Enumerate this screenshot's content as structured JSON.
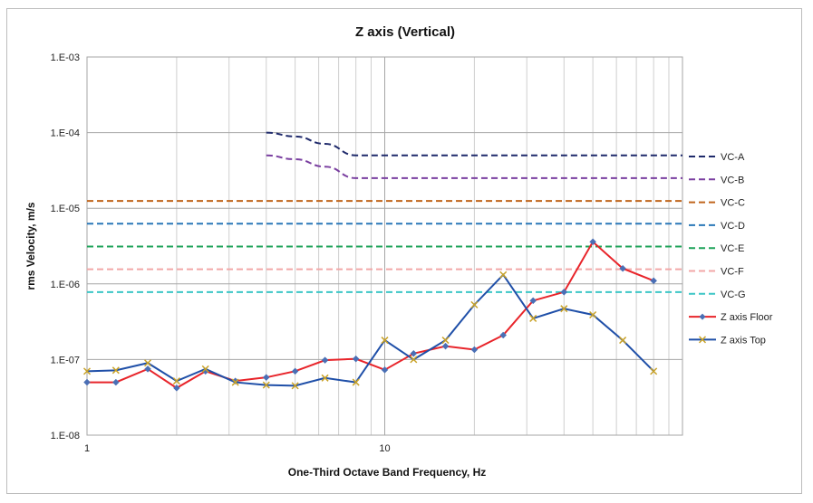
{
  "chart_data": {
    "type": "line",
    "title": "Z axis (Vertical)",
    "xlabel": "One-Third Octave Band Frequency, Hz",
    "ylabel": "rms Velocity, m/s",
    "x_scale": "log",
    "y_scale": "log",
    "xlim": [
      1,
      100
    ],
    "ylim": [
      1e-08,
      0.001
    ],
    "x_tick_labels": [
      {
        "value": 1,
        "label": "1"
      },
      {
        "value": 10,
        "label": "10"
      }
    ],
    "y_tick_labels": [
      {
        "value": 1e-08,
        "label": "1.E-08"
      },
      {
        "value": 1e-07,
        "label": "1.E-07"
      },
      {
        "value": 1e-06,
        "label": "1.E-06"
      },
      {
        "value": 1e-05,
        "label": "1.E-05"
      },
      {
        "value": 0.0001,
        "label": "1.E-04"
      },
      {
        "value": 0.001,
        "label": "1.E-03"
      }
    ],
    "grid": true,
    "legend_position": "right",
    "series": [
      {
        "name": "VC-A",
        "style": "dashed",
        "color": "#1f2a6b",
        "x": [
          4,
          5,
          6.3,
          8,
          10,
          100
        ],
        "y": [
          0.0001,
          8.9e-05,
          7.1e-05,
          5e-05,
          5e-05,
          5e-05
        ]
      },
      {
        "name": "VC-B",
        "style": "dashed",
        "color": "#7a3fa0",
        "x": [
          4,
          5,
          6.3,
          8,
          10,
          100
        ],
        "y": [
          5e-05,
          4.45e-05,
          3.55e-05,
          2.5e-05,
          2.5e-05,
          2.5e-05
        ]
      },
      {
        "name": "VC-C",
        "style": "dashed",
        "color": "#c0651c",
        "x": [
          1,
          100
        ],
        "y": [
          1.25e-05,
          1.25e-05
        ]
      },
      {
        "name": "VC-D",
        "style": "dashed",
        "color": "#2a78b8",
        "x": [
          1,
          100
        ],
        "y": [
          6.25e-06,
          6.25e-06
        ]
      },
      {
        "name": "VC-E",
        "style": "dashed",
        "color": "#1fa35a",
        "x": [
          1,
          100
        ],
        "y": [
          3.12e-06,
          3.12e-06
        ]
      },
      {
        "name": "VC-F",
        "style": "dashed",
        "color": "#f2a7a7",
        "x": [
          1,
          100
        ],
        "y": [
          1.56e-06,
          1.56e-06
        ]
      },
      {
        "name": "VC-G",
        "style": "dashed",
        "color": "#3cc6c6",
        "x": [
          1,
          100
        ],
        "y": [
          7.8e-07,
          7.8e-07
        ]
      },
      {
        "name": "Z axis Floor",
        "style": "solid",
        "color": "#e8242a",
        "marker": "diamond",
        "marker_color": "#4a6fb5",
        "x": [
          1,
          1.25,
          1.6,
          2,
          2.5,
          3.15,
          4,
          5,
          6.3,
          8,
          10,
          12.5,
          16,
          20,
          25,
          31.5,
          40,
          50,
          63,
          80
        ],
        "y": [
          5e-08,
          5e-08,
          7.5e-08,
          4.2e-08,
          7e-08,
          5.2e-08,
          5.8e-08,
          7e-08,
          9.8e-08,
          1.02e-07,
          7.3e-08,
          1.2e-07,
          1.5e-07,
          1.35e-07,
          2.1e-07,
          6e-07,
          7.8e-07,
          3.6e-06,
          1.6e-06,
          1.1e-06
        ]
      },
      {
        "name": "Z axis Top",
        "style": "solid",
        "color": "#1f4fa8",
        "marker": "x",
        "marker_color": "#c9a227",
        "x": [
          1,
          1.25,
          1.6,
          2,
          2.5,
          3.15,
          4,
          5,
          6.3,
          8,
          10,
          12.5,
          16,
          20,
          25,
          31.5,
          40,
          50,
          63,
          80
        ],
        "y": [
          7e-08,
          7.2e-08,
          9e-08,
          5.2e-08,
          7.5e-08,
          5e-08,
          4.6e-08,
          4.5e-08,
          5.7e-08,
          5e-08,
          1.8e-07,
          1e-07,
          1.8e-07,
          5.3e-07,
          1.32e-06,
          3.5e-07,
          4.7e-07,
          3.9e-07,
          1.8e-07,
          7e-08
        ]
      }
    ]
  }
}
